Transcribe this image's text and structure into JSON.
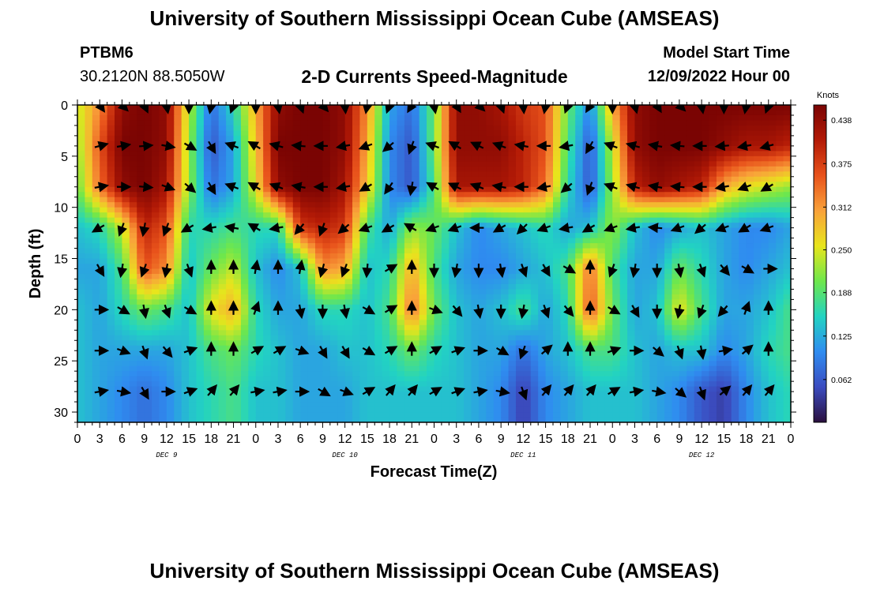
{
  "header": {
    "title": "University of Southern Mississippi Ocean Cube (AMSEAS)",
    "station_id": "PTBM6",
    "station_coords": "30.2120N  88.5050W",
    "plot_title": "2-D Currents Speed-Magnitude",
    "start_label": "Model Start Time",
    "start_value": "12/09/2022 Hour 00"
  },
  "footer": {
    "title": "University of Southern Mississippi Ocean Cube (AMSEAS)"
  },
  "colors": {
    "colormap": [
      "#2a0f3e",
      "#3b4cc0",
      "#2f8cf0",
      "#22d3c2",
      "#6ee74c",
      "#e8e51c",
      "#f9a23a",
      "#e8521b",
      "#b31a06",
      "#7a0403"
    ]
  },
  "chart_data": {
    "type": "heatmap",
    "xlabel": "Forecast Time(Z)",
    "ylabel": "Depth (ft)",
    "x_tick_labels": [
      "0",
      "3",
      "6",
      "9",
      "12",
      "15",
      "18",
      "21",
      "0",
      "3",
      "6",
      "9",
      "12",
      "15",
      "18",
      "21",
      "0",
      "3",
      "6",
      "9",
      "12",
      "15",
      "18",
      "21",
      "0",
      "3",
      "6",
      "9",
      "12",
      "15",
      "18",
      "21",
      "0"
    ],
    "x_range_hours": [
      0,
      96
    ],
    "y_range_ft": [
      0,
      31
    ],
    "y_ticks": [
      "0",
      "5",
      "10",
      "15",
      "20",
      "25",
      "30"
    ],
    "y_tick_values": [
      0,
      5,
      10,
      15,
      20,
      25,
      30
    ],
    "day_labels": [
      "DEC 9",
      "DEC 10",
      "DEC 11",
      "DEC 12"
    ],
    "day_label_hours": [
      12,
      36,
      60,
      84
    ],
    "colorbar": {
      "unit": "Knots",
      "tick_labels": [
        "0.438",
        "0.375",
        "0.312",
        "0.250",
        "0.188",
        "0.125",
        "0.062"
      ],
      "tick_values": [
        0.438,
        0.375,
        0.312,
        0.25,
        0.188,
        0.125,
        0.062
      ],
      "range": [
        0,
        0.46
      ]
    },
    "depth_levels_ft": [
      0,
      4,
      8,
      12,
      16,
      20,
      24,
      28
    ],
    "hours": [
      0,
      3,
      6,
      9,
      12,
      15,
      18,
      21,
      24,
      27,
      30,
      33,
      36,
      39,
      42,
      45,
      48,
      51,
      54,
      57,
      60,
      63,
      66,
      69,
      72,
      75,
      78,
      81,
      84,
      87,
      90,
      93,
      96
    ],
    "speed_knots": [
      [
        0.24,
        0.32,
        0.44,
        0.46,
        0.44,
        0.24,
        0.08,
        0.16,
        0.3,
        0.44,
        0.46,
        0.46,
        0.44,
        0.32,
        0.12,
        0.08,
        0.2,
        0.44,
        0.44,
        0.42,
        0.38,
        0.36,
        0.2,
        0.1,
        0.3,
        0.44,
        0.46,
        0.46,
        0.46,
        0.46,
        0.46,
        0.46,
        0.46
      ],
      [
        0.22,
        0.36,
        0.46,
        0.46,
        0.44,
        0.22,
        0.06,
        0.12,
        0.28,
        0.46,
        0.46,
        0.46,
        0.44,
        0.3,
        0.1,
        0.06,
        0.2,
        0.44,
        0.44,
        0.44,
        0.4,
        0.36,
        0.18,
        0.06,
        0.24,
        0.44,
        0.46,
        0.46,
        0.46,
        0.44,
        0.42,
        0.42,
        0.4
      ],
      [
        0.2,
        0.34,
        0.44,
        0.46,
        0.42,
        0.22,
        0.08,
        0.12,
        0.26,
        0.44,
        0.46,
        0.46,
        0.42,
        0.28,
        0.1,
        0.06,
        0.18,
        0.42,
        0.42,
        0.42,
        0.4,
        0.34,
        0.16,
        0.06,
        0.22,
        0.4,
        0.44,
        0.42,
        0.4,
        0.3,
        0.26,
        0.24,
        0.22
      ],
      [
        0.14,
        0.16,
        0.24,
        0.4,
        0.36,
        0.16,
        0.16,
        0.18,
        0.16,
        0.16,
        0.38,
        0.4,
        0.38,
        0.18,
        0.12,
        0.22,
        0.2,
        0.14,
        0.1,
        0.12,
        0.14,
        0.16,
        0.12,
        0.14,
        0.22,
        0.14,
        0.1,
        0.12,
        0.14,
        0.12,
        0.1,
        0.1,
        0.12
      ],
      [
        0.12,
        0.12,
        0.18,
        0.36,
        0.32,
        0.14,
        0.2,
        0.24,
        0.14,
        0.1,
        0.14,
        0.32,
        0.3,
        0.14,
        0.16,
        0.3,
        0.18,
        0.12,
        0.1,
        0.1,
        0.12,
        0.14,
        0.18,
        0.34,
        0.18,
        0.12,
        0.12,
        0.2,
        0.16,
        0.12,
        0.1,
        0.12,
        0.14
      ],
      [
        0.14,
        0.12,
        0.16,
        0.2,
        0.18,
        0.14,
        0.26,
        0.3,
        0.16,
        0.12,
        0.12,
        0.16,
        0.16,
        0.14,
        0.18,
        0.34,
        0.2,
        0.14,
        0.12,
        0.14,
        0.18,
        0.12,
        0.16,
        0.36,
        0.2,
        0.12,
        0.14,
        0.26,
        0.18,
        0.12,
        0.12,
        0.14,
        0.18
      ],
      [
        0.14,
        0.12,
        0.12,
        0.12,
        0.12,
        0.14,
        0.18,
        0.2,
        0.16,
        0.14,
        0.12,
        0.12,
        0.14,
        0.14,
        0.16,
        0.2,
        0.16,
        0.14,
        0.12,
        0.12,
        0.08,
        0.12,
        0.14,
        0.18,
        0.18,
        0.14,
        0.12,
        0.14,
        0.14,
        0.1,
        0.12,
        0.16,
        0.18
      ],
      [
        0.14,
        0.12,
        0.1,
        0.08,
        0.1,
        0.14,
        0.16,
        0.18,
        0.14,
        0.14,
        0.12,
        0.12,
        0.12,
        0.14,
        0.14,
        0.14,
        0.14,
        0.14,
        0.12,
        0.1,
        0.04,
        0.1,
        0.12,
        0.14,
        0.14,
        0.14,
        0.12,
        0.1,
        0.06,
        0.04,
        0.1,
        0.14,
        0.16
      ]
    ],
    "direction_deg": [
      [
        160,
        145,
        135,
        155,
        170,
        180,
        190,
        200,
        180,
        170,
        160,
        140,
        175,
        190,
        200,
        210,
        170,
        150,
        135,
        160,
        175,
        190,
        200,
        210,
        180,
        165,
        150,
        135,
        170,
        180,
        190,
        200,
        170
      ],
      [
        70,
        75,
        80,
        85,
        100,
        120,
        150,
        290,
        300,
        285,
        275,
        270,
        260,
        250,
        230,
        200,
        290,
        300,
        295,
        290,
        280,
        270,
        260,
        210,
        290,
        285,
        280,
        275,
        270,
        265,
        260,
        255,
        250
      ],
      [
        70,
        80,
        90,
        95,
        110,
        130,
        150,
        290,
        300,
        290,
        280,
        270,
        260,
        240,
        215,
        190,
        300,
        295,
        290,
        280,
        270,
        260,
        230,
        200,
        290,
        285,
        280,
        275,
        270,
        260,
        250,
        240,
        250
      ],
      [
        250,
        240,
        200,
        190,
        200,
        240,
        260,
        280,
        300,
        260,
        220,
        200,
        230,
        250,
        240,
        300,
        250,
        250,
        270,
        240,
        225,
        250,
        260,
        240,
        250,
        260,
        275,
        250,
        230,
        250,
        240,
        250,
        260
      ],
      [
        100,
        150,
        190,
        200,
        190,
        160,
        0,
        0,
        10,
        0,
        10,
        195,
        200,
        185,
        60,
        0,
        180,
        190,
        180,
        170,
        160,
        150,
        120,
        0,
        200,
        190,
        180,
        170,
        160,
        140,
        120,
        90,
        110
      ],
      [
        70,
        90,
        120,
        170,
        160,
        120,
        0,
        0,
        20,
        0,
        170,
        180,
        170,
        120,
        60,
        0,
        110,
        140,
        170,
        180,
        190,
        160,
        140,
        0,
        120,
        150,
        180,
        190,
        200,
        220,
        20,
        0,
        30
      ],
      [
        80,
        90,
        110,
        160,
        140,
        70,
        0,
        0,
        60,
        60,
        110,
        150,
        150,
        120,
        60,
        0,
        60,
        70,
        90,
        120,
        200,
        50,
        0,
        0,
        70,
        90,
        130,
        160,
        170,
        80,
        50,
        0,
        10
      ],
      [
        70,
        80,
        100,
        150,
        90,
        70,
        40,
        40,
        80,
        80,
        90,
        120,
        110,
        60,
        40,
        40,
        60,
        70,
        80,
        100,
        160,
        40,
        40,
        40,
        60,
        80,
        100,
        130,
        160,
        50,
        40,
        40,
        50
      ]
    ]
  }
}
